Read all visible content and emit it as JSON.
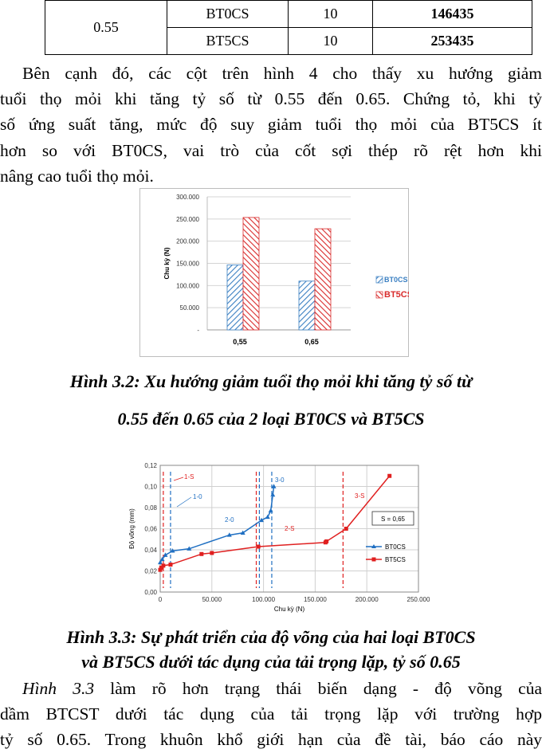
{
  "table": {
    "ratio": "0.55",
    "rows": [
      {
        "type": "BT0CS",
        "count": "10",
        "cycles": "146435"
      },
      {
        "type": "BT5CS",
        "count": "10",
        "cycles": "253435"
      }
    ]
  },
  "para1": {
    "lines": [
      "Bên cạnh đó, các cột trên hình 4 cho thấy xu hướng giảm",
      "tuổi thọ mỏi khi tăng tỷ số từ 0.55 đến 0.65. Chứng tỏ, khi tỷ",
      "số ứng suất tăng, mức độ suy giảm tuổi thọ mỏi của BT5CS ít",
      "hơn so với BT0CS, vai trò của cốt sợi thép rõ rệt hơn khi",
      "nâng cao tuổi thọ mỏi."
    ]
  },
  "caption1": {
    "line1": "Hình 3.2: Xu hướng giảm tuổi thọ mỏi khi tăng tỷ số từ",
    "line2": "0.55 đến 0.65 của 2 loại BT0CS và BT5CS"
  },
  "caption2": {
    "line1": "Hình 3.3: Sự phát triển của độ võng của hai loại BT0CS",
    "line2": "và BT5CS dưới tác dụng của tải trọng lặp, tỷ số 0.65"
  },
  "para2": {
    "lines": [
      {
        "italic": "Hình 3.3",
        "rest": " làm rõ hơn trạng thái biến dạng - độ võng của"
      },
      {
        "italic": "",
        "rest": "dầm BTCST dưới tác dụng của tải trọng lặp với trường hợp"
      },
      {
        "italic": "",
        "rest": "tỷ số 0.65. Trong khuôn khổ giới hạn của đề tài, báo cáo này"
      }
    ]
  },
  "chart_data": [
    {
      "type": "bar",
      "categories": [
        "0,55",
        "0,65"
      ],
      "ylabel": "Chu kỳ (N)",
      "ylim": [
        0,
        300000
      ],
      "yticks": [
        "-",
        "50.000",
        "100.000",
        "150.000",
        "200.000",
        "250.000",
        "300.000"
      ],
      "legend_position": "right",
      "grid": true,
      "series": [
        {
          "name": "BT0CS",
          "values": [
            146435,
            110000
          ],
          "color": "#3a7fc2",
          "pattern": "hatch-diagonal"
        },
        {
          "name": "BT5CS",
          "values": [
            253435,
            228000
          ],
          "color": "#d92b2b",
          "pattern": "hatch-diagonal"
        }
      ]
    },
    {
      "type": "line",
      "xlabel": "Chu kỳ (N)",
      "ylabel": "Độ võng (mm)",
      "xlim": [
        0,
        250000
      ],
      "ylim": [
        0,
        0.12
      ],
      "xticks": [
        "0",
        "50.000",
        "100.000",
        "150.000",
        "200.000",
        "250.000"
      ],
      "yticks": [
        "0,00",
        "0,02",
        "0,04",
        "0,06",
        "0,08",
        "0,10",
        "0,12"
      ],
      "grid": true,
      "legend_position": "right",
      "annotation_box": "S = 0,65",
      "series": [
        {
          "name": "BT0CS",
          "color": "#1f6fc2",
          "marker": "triangle",
          "x": [
            0,
            2000,
            5000,
            12000,
            28000,
            67000,
            80000,
            98000,
            104000,
            107000,
            109000,
            110000
          ],
          "y": [
            0.028,
            0.031,
            0.035,
            0.039,
            0.041,
            0.054,
            0.056,
            0.068,
            0.071,
            0.077,
            0.092,
            0.1
          ]
        },
        {
          "name": "BT5CS",
          "color": "#e02020",
          "marker": "square",
          "x": [
            0,
            1000,
            3000,
            10000,
            40000,
            50000,
            95000,
            160000,
            161000,
            180000,
            222000
          ],
          "y": [
            0.021,
            0.023,
            0.025,
            0.026,
            0.036,
            0.037,
            0.043,
            0.047,
            0.048,
            0.06,
            0.11
          ]
        }
      ],
      "vlines": [
        {
          "label": "1-S",
          "x": 3000,
          "color": "#e02020"
        },
        {
          "label": "1-0",
          "x": 10000,
          "color": "#1f6fc2"
        },
        {
          "label": "2-0",
          "x": 96000,
          "color": "#1f6fc2"
        },
        {
          "label": "2-S",
          "x": 93000,
          "color": "#e02020"
        },
        {
          "label": "3-0",
          "x": 108000,
          "color": "#1f6fc2"
        },
        {
          "label": "3-S",
          "x": 177000,
          "color": "#e02020"
        }
      ]
    }
  ]
}
